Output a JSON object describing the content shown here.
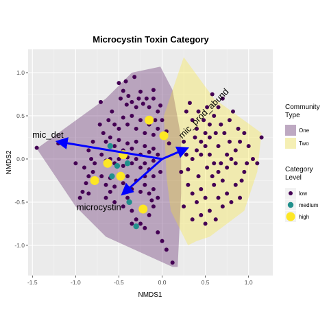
{
  "chart_data": {
    "type": "scatter",
    "title": "Microcystin Toxin Category",
    "xlabel": "NMDS1",
    "ylabel": "NMDS2",
    "xlim": [
      -1.55,
      1.28
    ],
    "ylim": [
      -1.35,
      1.27
    ],
    "x_ticks": [
      "-1.5",
      "-1.0",
      "-0.5",
      "0.0",
      "0.5",
      "1.0"
    ],
    "x_tick_values": [
      -1.5,
      -1.0,
      -0.5,
      0.0,
      0.5,
      1.0
    ],
    "y_ticks": [
      "-1.0",
      "-0.5",
      "0.0",
      "0.5",
      "1.0"
    ],
    "y_tick_values": [
      -1.0,
      -0.5,
      0.0,
      0.5,
      1.0
    ],
    "grid": true,
    "background": "#ebebeb",
    "hulls": [
      {
        "name": "One",
        "color": "#440154",
        "opacity": 0.3,
        "points": [
          [
            -1.45,
            0.12
          ],
          [
            -0.65,
            0.7
          ],
          [
            -0.35,
            1.0
          ],
          [
            -0.02,
            1.07
          ],
          [
            0.12,
            0.8
          ],
          [
            0.22,
            0.25
          ],
          [
            0.22,
            -0.4
          ],
          [
            0.18,
            -1.25
          ],
          [
            0.12,
            -1.25
          ],
          [
            -0.65,
            -0.9
          ],
          [
            -1.0,
            -0.55
          ]
        ]
      },
      {
        "name": "Two",
        "color": "#fde725",
        "opacity": 0.3,
        "points": [
          [
            0.25,
            1.18
          ],
          [
            0.6,
            0.7
          ],
          [
            1.15,
            0.3
          ],
          [
            1.1,
            -0.15
          ],
          [
            0.95,
            -0.6
          ],
          [
            0.55,
            -0.9
          ],
          [
            0.4,
            -0.95
          ],
          [
            0.3,
            -1.0
          ],
          [
            0.1,
            -0.6
          ],
          [
            0.05,
            -0.2
          ],
          [
            0.02,
            0.5
          ]
        ]
      }
    ],
    "series": [
      {
        "name": "low",
        "color": "#440154",
        "radius": 3,
        "points": [
          [
            -0.71,
            0.66
          ],
          [
            -0.5,
            0.88
          ],
          [
            -0.45,
            0.79
          ],
          [
            -0.48,
            0.7
          ],
          [
            -0.41,
            0.63
          ],
          [
            -0.39,
            0.73
          ],
          [
            -0.35,
            0.66
          ],
          [
            -0.3,
            0.6
          ],
          [
            -0.27,
            0.7
          ],
          [
            -0.25,
            0.78
          ],
          [
            -0.22,
            0.64
          ],
          [
            -0.18,
            0.7
          ],
          [
            -0.15,
            0.6
          ],
          [
            -0.1,
            0.7
          ],
          [
            -0.05,
            0.55
          ],
          [
            0.0,
            0.45
          ],
          [
            -0.58,
            0.55
          ],
          [
            -0.62,
            0.45
          ],
          [
            -0.55,
            0.4
          ],
          [
            -0.5,
            0.35
          ],
          [
            -0.45,
            0.48
          ],
          [
            -0.4,
            0.4
          ],
          [
            -0.35,
            0.5
          ],
          [
            -0.3,
            0.35
          ],
          [
            -0.25,
            0.45
          ],
          [
            -0.2,
            0.3
          ],
          [
            -0.15,
            0.4
          ],
          [
            -0.1,
            0.28
          ],
          [
            -0.05,
            0.35
          ],
          [
            -0.72,
            0.4
          ],
          [
            -0.68,
            0.3
          ],
          [
            -0.65,
            0.2
          ],
          [
            -0.6,
            0.25
          ],
          [
            -0.55,
            0.15
          ],
          [
            -0.5,
            0.22
          ],
          [
            -0.45,
            0.1
          ],
          [
            -0.4,
            0.18
          ],
          [
            -0.35,
            0.12
          ],
          [
            -0.3,
            0.2
          ],
          [
            -0.25,
            0.05
          ],
          [
            -0.2,
            0.15
          ],
          [
            -0.15,
            0.08
          ],
          [
            -0.1,
            0.12
          ],
          [
            -0.05,
            0.05
          ],
          [
            -0.8,
            0.2
          ],
          [
            -0.85,
            0.1
          ],
          [
            -0.82,
            0.0
          ],
          [
            -0.78,
            -0.05
          ],
          [
            -0.7,
            0.05
          ],
          [
            -0.65,
            -0.02
          ],
          [
            -0.6,
            0.0
          ],
          [
            -0.55,
            -0.05
          ],
          [
            -0.5,
            0.0
          ],
          [
            -0.45,
            -0.08
          ],
          [
            -0.4,
            0.02
          ],
          [
            -0.35,
            -0.05
          ],
          [
            -0.3,
            0.0
          ],
          [
            -0.25,
            -0.1
          ],
          [
            -0.2,
            -0.05
          ],
          [
            -0.15,
            -0.12
          ],
          [
            -0.1,
            -0.02
          ],
          [
            -0.9,
            -0.1
          ],
          [
            -0.85,
            -0.2
          ],
          [
            -0.8,
            -0.15
          ],
          [
            -0.75,
            -0.25
          ],
          [
            -0.7,
            -0.2
          ],
          [
            -0.65,
            -0.3
          ],
          [
            -0.6,
            -0.22
          ],
          [
            -0.55,
            -0.32
          ],
          [
            -0.5,
            -0.18
          ],
          [
            -0.45,
            -0.28
          ],
          [
            -0.4,
            -0.2
          ],
          [
            -0.35,
            -0.35
          ],
          [
            -0.3,
            -0.25
          ],
          [
            -0.25,
            -0.38
          ],
          [
            -0.2,
            -0.3
          ],
          [
            -0.15,
            -0.4
          ],
          [
            -0.1,
            -0.35
          ],
          [
            -1.45,
            0.13
          ],
          [
            -1.2,
            0.18
          ],
          [
            -1.0,
            -0.05
          ],
          [
            -0.95,
            -0.45
          ],
          [
            -0.85,
            -0.4
          ],
          [
            -0.65,
            -0.45
          ],
          [
            -0.55,
            -0.5
          ],
          [
            -0.45,
            -0.55
          ],
          [
            -0.35,
            -0.6
          ],
          [
            -0.3,
            -0.7
          ],
          [
            -0.25,
            -0.75
          ],
          [
            -0.2,
            -0.8
          ],
          [
            -0.15,
            -0.65
          ],
          [
            -0.1,
            -0.55
          ],
          [
            -0.05,
            -0.45
          ],
          [
            -0.05,
            -0.85
          ],
          [
            0.0,
            -0.95
          ],
          [
            0.05,
            -1.05
          ],
          [
            0.12,
            -1.2
          ],
          [
            -0.1,
            -0.2
          ],
          [
            -0.32,
            0.95
          ],
          [
            -0.42,
            0.9
          ],
          [
            -0.1,
            0.8
          ],
          [
            -0.02,
            -0.15
          ],
          [
            0.3,
            -0.12
          ],
          [
            0.35,
            0.0
          ],
          [
            0.4,
            0.1
          ],
          [
            0.45,
            0.2
          ],
          [
            0.5,
            0.3
          ],
          [
            0.55,
            0.4
          ],
          [
            0.6,
            0.5
          ],
          [
            0.65,
            0.6
          ],
          [
            0.7,
            0.7
          ],
          [
            0.35,
            0.45
          ],
          [
            0.4,
            0.35
          ],
          [
            0.5,
            0.15
          ],
          [
            0.55,
            0.05
          ],
          [
            0.6,
            -0.05
          ],
          [
            0.65,
            -0.15
          ],
          [
            0.7,
            -0.25
          ],
          [
            0.75,
            -0.1
          ],
          [
            0.8,
            0.0
          ],
          [
            0.85,
            0.1
          ],
          [
            0.9,
            0.2
          ],
          [
            0.95,
            0.3
          ],
          [
            1.0,
            0.15
          ],
          [
            1.05,
            0.0
          ],
          [
            1.1,
            -0.05
          ],
          [
            1.15,
            0.25
          ],
          [
            0.3,
            -0.3
          ],
          [
            0.35,
            -0.4
          ],
          [
            0.4,
            -0.5
          ],
          [
            0.45,
            -0.35
          ],
          [
            0.5,
            -0.45
          ],
          [
            0.55,
            -0.6
          ],
          [
            0.6,
            -0.3
          ],
          [
            0.65,
            -0.45
          ],
          [
            0.7,
            -0.55
          ],
          [
            0.75,
            -0.4
          ],
          [
            0.8,
            -0.5
          ],
          [
            0.85,
            -0.3
          ],
          [
            0.9,
            -0.45
          ],
          [
            0.95,
            -0.15
          ],
          [
            0.25,
            0.2
          ],
          [
            0.28,
            0.55
          ],
          [
            0.32,
            0.65
          ],
          [
            0.42,
            0.55
          ],
          [
            0.48,
            0.45
          ],
          [
            0.52,
            0.6
          ],
          [
            0.58,
            0.75
          ],
          [
            0.68,
            0.4
          ],
          [
            0.72,
            0.3
          ],
          [
            0.78,
            0.45
          ],
          [
            0.82,
            0.55
          ],
          [
            0.88,
            0.35
          ],
          [
            0.92,
            -0.25
          ],
          [
            0.98,
            -0.05
          ],
          [
            0.62,
            -0.7
          ],
          [
            0.5,
            -0.75
          ],
          [
            0.45,
            -0.65
          ],
          [
            0.35,
            -0.7
          ],
          [
            0.25,
            -0.55
          ],
          [
            0.22,
            -0.15
          ],
          [
            0.28,
            0.05
          ],
          [
            0.45,
            0.05
          ],
          [
            0.55,
            0.25
          ],
          [
            0.65,
            0.15
          ],
          [
            0.75,
            0.05
          ],
          [
            0.85,
            -0.05
          ],
          [
            0.42,
            -0.2
          ],
          [
            0.52,
            -0.1
          ],
          [
            0.62,
            0.3
          ],
          [
            0.58,
            -0.2
          ],
          [
            0.68,
            -0.05
          ],
          [
            0.78,
            0.2
          ],
          [
            0.38,
            0.25
          ],
          [
            -0.88,
            -0.28
          ],
          [
            -0.92,
            -0.38
          ],
          [
            -0.6,
            -0.38
          ],
          [
            -0.4,
            -0.45
          ],
          [
            -0.2,
            -0.2
          ],
          [
            -0.12,
            -0.48
          ],
          [
            -0.35,
            -0.75
          ],
          [
            0.08,
            0.18
          ],
          [
            0.05,
            0.32
          ],
          [
            -0.02,
            0.62
          ],
          [
            -0.08,
            0.45
          ]
        ]
      },
      {
        "name": "medium",
        "color": "#21908c",
        "radius": 4.2,
        "points": [
          [
            -0.6,
            0.15
          ],
          [
            -0.58,
            -0.2
          ],
          [
            -0.4,
            -0.05
          ],
          [
            -0.38,
            -0.5
          ],
          [
            -0.3,
            -0.78
          ],
          [
            -0.52,
            -0.08
          ]
        ]
      },
      {
        "name": "high",
        "color": "#fde725",
        "radius": 6.5,
        "points": [
          [
            -0.15,
            0.45
          ],
          [
            0.02,
            0.27
          ],
          [
            -0.45,
            0.05
          ],
          [
            -0.63,
            -0.05
          ],
          [
            -0.78,
            -0.25
          ],
          [
            -0.48,
            -0.2
          ],
          [
            -0.22,
            -0.58
          ]
        ]
      }
    ],
    "vectors": [
      {
        "label": "mic_det",
        "x": -1.2,
        "y": 0.2
      },
      {
        "label": "mic_prod_abund",
        "x": 0.28,
        "y": 0.12
      },
      {
        "label": "microcystin",
        "x": -0.45,
        "y": -0.4
      }
    ],
    "vector_color": "#0000ff",
    "legend": {
      "placement": "right",
      "community_title": "Community Type",
      "community_title_lines": [
        "Community",
        "Type"
      ],
      "community_items": [
        {
          "label": "One",
          "color": "#440154"
        },
        {
          "label": "Two",
          "color": "#fde725"
        }
      ],
      "category_title": "Category Level",
      "category_title_lines": [
        "Category",
        "Level"
      ],
      "category_items": [
        {
          "label": "low",
          "color": "#440154",
          "radius": 3
        },
        {
          "label": "medium",
          "color": "#21908c",
          "radius": 4.2
        },
        {
          "label": "high",
          "color": "#fde725",
          "radius": 6.5
        }
      ]
    }
  }
}
